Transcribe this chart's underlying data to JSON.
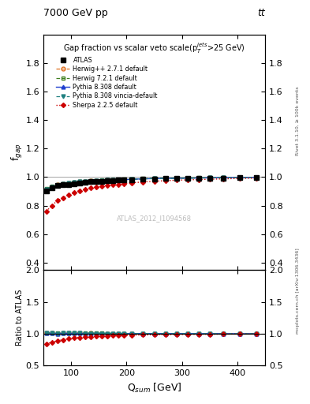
{
  "title_main": "7000 GeV pp",
  "title_right": "tt",
  "plot_title": "Gap fraction vs scalar veto scale(p$_T^{jets}$>25 GeV)",
  "watermark": "ATLAS_2012_I1094568",
  "right_label_top": "Rivet 3.1.10, ≥ 100k events",
  "right_label_bottom": "mcplots.cern.ch [arXiv:1306.3436]",
  "ylabel_main": "f$_{gap}$",
  "ylabel_ratio": "Ratio to ATLAS",
  "xlabel": "Q$_{sum}$ [GeV]",
  "xlim": [
    50,
    450
  ],
  "ylim_main": [
    0.35,
    2.0
  ],
  "ylim_ratio": [
    0.5,
    2.0
  ],
  "yticks_main": [
    0.4,
    0.6,
    0.8,
    1.0,
    1.2,
    1.4,
    1.6,
    1.8
  ],
  "yticks_ratio": [
    0.5,
    1.0,
    1.5,
    2.0
  ],
  "xticks": [
    100,
    200,
    300,
    400
  ],
  "x_data": [
    55,
    65,
    75,
    85,
    95,
    105,
    115,
    125,
    135,
    145,
    155,
    165,
    175,
    185,
    195,
    210,
    230,
    250,
    270,
    290,
    310,
    330,
    350,
    375,
    405,
    435
  ],
  "atlas_data": [
    0.905,
    0.925,
    0.94,
    0.945,
    0.95,
    0.955,
    0.96,
    0.965,
    0.967,
    0.97,
    0.972,
    0.975,
    0.977,
    0.979,
    0.98,
    0.983,
    0.985,
    0.987,
    0.989,
    0.99,
    0.991,
    0.992,
    0.993,
    0.994,
    0.996,
    0.997
  ],
  "herwig_pp_data": [
    0.915,
    0.932,
    0.945,
    0.952,
    0.958,
    0.963,
    0.967,
    0.97,
    0.973,
    0.975,
    0.977,
    0.979,
    0.981,
    0.982,
    0.983,
    0.985,
    0.988,
    0.99,
    0.991,
    0.992,
    0.993,
    0.994,
    0.995,
    0.996,
    0.997,
    0.998
  ],
  "herwig7_data": [
    0.92,
    0.935,
    0.947,
    0.954,
    0.96,
    0.965,
    0.969,
    0.972,
    0.974,
    0.976,
    0.978,
    0.98,
    0.982,
    0.983,
    0.984,
    0.986,
    0.989,
    0.991,
    0.992,
    0.993,
    0.994,
    0.995,
    0.995,
    0.996,
    0.997,
    0.998
  ],
  "pythia8_data": [
    0.912,
    0.93,
    0.944,
    0.951,
    0.957,
    0.962,
    0.966,
    0.969,
    0.972,
    0.974,
    0.976,
    0.978,
    0.98,
    0.981,
    0.982,
    0.985,
    0.988,
    0.99,
    0.991,
    0.992,
    0.993,
    0.994,
    0.995,
    0.996,
    0.997,
    0.998
  ],
  "pythia8_vincia_data": [
    0.913,
    0.931,
    0.944,
    0.952,
    0.957,
    0.962,
    0.967,
    0.97,
    0.972,
    0.975,
    0.977,
    0.979,
    0.981,
    0.982,
    0.983,
    0.985,
    0.988,
    0.99,
    0.991,
    0.992,
    0.993,
    0.994,
    0.995,
    0.996,
    0.997,
    0.998
  ],
  "sherpa_data": [
    0.76,
    0.8,
    0.835,
    0.855,
    0.875,
    0.89,
    0.905,
    0.915,
    0.923,
    0.93,
    0.936,
    0.941,
    0.946,
    0.95,
    0.954,
    0.96,
    0.966,
    0.971,
    0.975,
    0.978,
    0.981,
    0.983,
    0.985,
    0.988,
    0.991,
    0.993
  ],
  "atlas_color": "#000000",
  "herwig_pp_color": "#e07020",
  "herwig7_color": "#408020",
  "pythia8_color": "#2040d0",
  "pythia8_vincia_color": "#208080",
  "sherpa_color": "#cc0000",
  "legend_entries": [
    "ATLAS",
    "Herwig++ 2.7.1 default",
    "Herwig 7.2.1 default",
    "Pythia 8.308 default",
    "Pythia 8.308 vincia-default",
    "Sherpa 2.2.5 default"
  ]
}
